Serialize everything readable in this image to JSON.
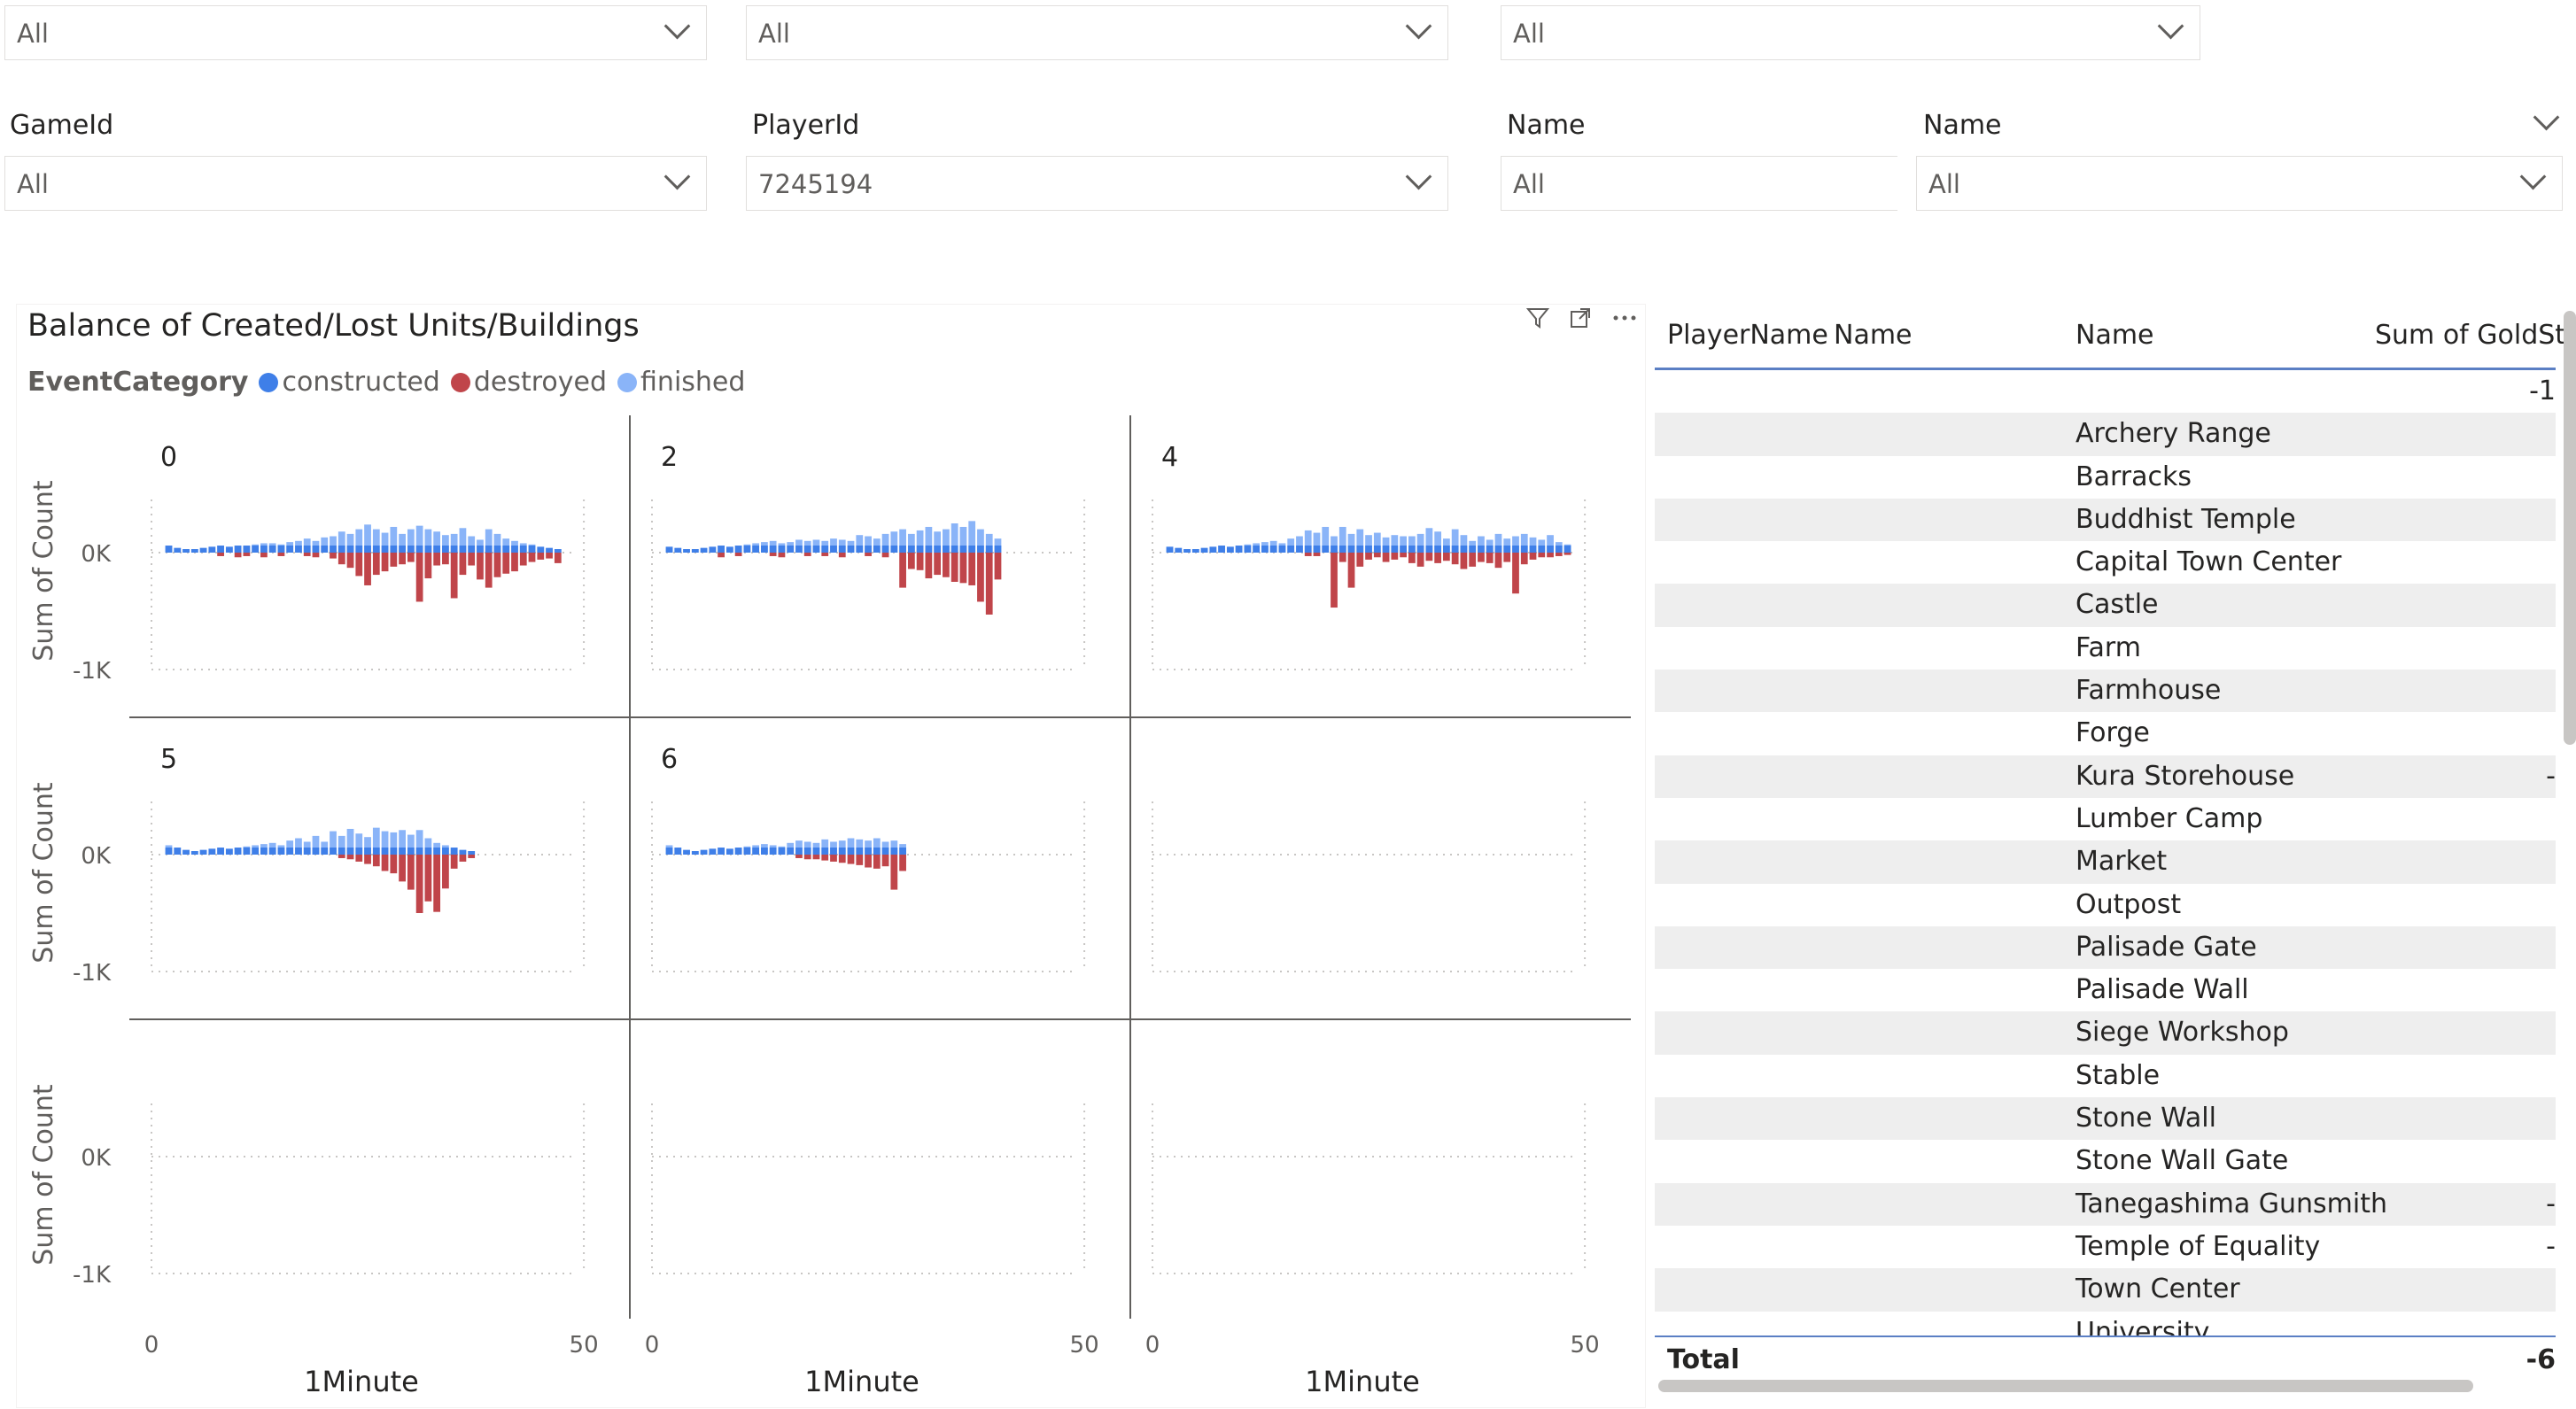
{
  "slicers_top": [
    {
      "value": "All"
    },
    {
      "value": "All"
    },
    {
      "value": "All"
    }
  ],
  "slicers": [
    {
      "title": "GameId",
      "value": "All"
    },
    {
      "title": "PlayerId",
      "value": "7245194"
    },
    {
      "title": "Name",
      "value": "All"
    },
    {
      "title": "Name",
      "value": "All"
    }
  ],
  "chart": {
    "title": "Balance of Created/Lost Units/Buildings",
    "legend_title": "EventCategory",
    "legend": [
      {
        "label": "constructed",
        "color": "#3f7fe8"
      },
      {
        "label": "destroyed",
        "color": "#c0454a"
      },
      {
        "label": "finished",
        "color": "#8ab4f8"
      }
    ],
    "icons": [
      "filter-icon",
      "focus-mode-icon",
      "more-options-icon"
    ]
  },
  "chart_data": {
    "type": "bar",
    "small_multiples": true,
    "panels": [
      {
        "label": "0",
        "x": [
          2,
          3,
          4,
          5,
          6,
          7,
          8,
          9,
          10,
          11,
          12,
          13,
          14,
          15,
          16,
          17,
          18,
          19,
          20,
          21,
          22,
          23,
          24,
          25,
          26,
          27,
          28,
          29,
          30,
          31,
          32,
          33,
          34,
          35,
          36,
          37,
          38,
          39,
          40,
          41,
          42,
          43,
          44,
          45,
          46,
          47
        ],
        "created": [
          60,
          40,
          30,
          30,
          40,
          50,
          60,
          50,
          60,
          60,
          70,
          80,
          80,
          70,
          90,
          100,
          120,
          100,
          130,
          140,
          180,
          160,
          200,
          240,
          200,
          170,
          220,
          160,
          200,
          230,
          200,
          180,
          150,
          160,
          210,
          140,
          110,
          200,
          160,
          120,
          100,
          80,
          70,
          50,
          40,
          30
        ],
        "destroyed": [
          0,
          0,
          0,
          0,
          0,
          0,
          -30,
          0,
          -40,
          -30,
          0,
          -40,
          0,
          -30,
          0,
          0,
          -30,
          -40,
          0,
          -50,
          -100,
          -130,
          -200,
          -280,
          -190,
          -160,
          -120,
          -100,
          -80,
          -420,
          -220,
          -110,
          -100,
          -390,
          -190,
          -110,
          -230,
          -300,
          -210,
          -180,
          -160,
          -110,
          -80,
          -60,
          -50,
          -90
        ]
      },
      {
        "label": "2",
        "x": [
          2,
          3,
          4,
          5,
          6,
          7,
          8,
          9,
          10,
          11,
          12,
          13,
          14,
          15,
          16,
          17,
          18,
          19,
          20,
          21,
          22,
          23,
          24,
          25,
          26,
          27,
          28,
          29,
          30,
          31,
          32,
          33,
          34,
          35,
          36,
          37,
          38,
          39,
          40
        ],
        "created": [
          50,
          40,
          30,
          30,
          40,
          50,
          60,
          50,
          60,
          70,
          80,
          90,
          100,
          80,
          90,
          110,
          100,
          110,
          100,
          120,
          110,
          100,
          150,
          140,
          120,
          160,
          180,
          200,
          160,
          190,
          220,
          180,
          200,
          250,
          220,
          270,
          200,
          160,
          120
        ],
        "destroyed": [
          0,
          0,
          0,
          0,
          0,
          0,
          -40,
          0,
          -30,
          0,
          0,
          0,
          -30,
          -40,
          0,
          0,
          -30,
          0,
          -30,
          0,
          -40,
          0,
          0,
          -30,
          0,
          -40,
          0,
          -300,
          -140,
          -150,
          -220,
          -190,
          -210,
          -250,
          -260,
          -280,
          -420,
          -530,
          -230
        ]
      },
      {
        "label": "4",
        "x": [
          2,
          3,
          4,
          5,
          6,
          7,
          8,
          9,
          10,
          11,
          12,
          13,
          14,
          15,
          16,
          17,
          18,
          19,
          20,
          21,
          22,
          23,
          24,
          25,
          26,
          27,
          28,
          29,
          30,
          31,
          32,
          33,
          34,
          35,
          36,
          37,
          38,
          39,
          40,
          41,
          42,
          43,
          44,
          45,
          46,
          47,
          48
        ],
        "created": [
          50,
          40,
          30,
          30,
          40,
          50,
          60,
          50,
          60,
          70,
          80,
          90,
          100,
          80,
          120,
          140,
          190,
          170,
          220,
          140,
          220,
          160,
          200,
          150,
          170,
          130,
          150,
          140,
          140,
          160,
          210,
          180,
          120,
          200,
          150,
          100,
          140,
          110,
          160,
          120,
          140,
          160,
          130,
          110,
          150,
          90,
          70
        ],
        "destroyed": [
          0,
          0,
          0,
          0,
          0,
          0,
          0,
          0,
          0,
          0,
          0,
          0,
          0,
          0,
          0,
          0,
          -30,
          -30,
          0,
          -470,
          -80,
          -300,
          -120,
          -60,
          -40,
          -80,
          -60,
          -40,
          -90,
          -120,
          -70,
          -90,
          -70,
          -100,
          -140,
          -120,
          -80,
          -90,
          -130,
          -80,
          -350,
          -100,
          -60,
          -40,
          -40,
          -30,
          -20
        ]
      },
      {
        "label": "5",
        "x": [
          2,
          3,
          4,
          5,
          6,
          7,
          8,
          9,
          10,
          11,
          12,
          13,
          14,
          15,
          16,
          17,
          18,
          19,
          20,
          21,
          22,
          23,
          24,
          25,
          26,
          27,
          28,
          29,
          30,
          31,
          32,
          33,
          34,
          35,
          36,
          37
        ],
        "created": [
          80,
          60,
          40,
          30,
          40,
          50,
          60,
          50,
          60,
          70,
          80,
          90,
          100,
          80,
          120,
          140,
          110,
          160,
          110,
          200,
          160,
          220,
          180,
          150,
          230,
          200,
          190,
          210,
          170,
          210,
          140,
          100,
          80,
          60,
          40,
          30
        ],
        "destroyed": [
          0,
          0,
          0,
          0,
          0,
          0,
          0,
          0,
          0,
          0,
          0,
          0,
          0,
          0,
          0,
          0,
          0,
          0,
          0,
          0,
          -30,
          -40,
          -60,
          -80,
          -100,
          -140,
          -160,
          -230,
          -300,
          -500,
          -400,
          -490,
          -290,
          -120,
          -60,
          -30
        ]
      },
      {
        "label": "6",
        "x": [
          2,
          3,
          4,
          5,
          6,
          7,
          8,
          9,
          10,
          11,
          12,
          13,
          14,
          15,
          16,
          17,
          18,
          19,
          20,
          21,
          22,
          23,
          24,
          25,
          26,
          27,
          28,
          29
        ],
        "created": [
          80,
          60,
          40,
          30,
          40,
          50,
          60,
          50,
          60,
          70,
          80,
          90,
          80,
          70,
          100,
          120,
          110,
          100,
          130,
          110,
          120,
          140,
          130,
          120,
          140,
          110,
          120,
          90
        ],
        "destroyed": [
          0,
          0,
          0,
          0,
          0,
          0,
          0,
          0,
          0,
          0,
          0,
          0,
          0,
          0,
          0,
          -30,
          -40,
          -40,
          -50,
          -60,
          -70,
          -80,
          -90,
          -110,
          -120,
          -100,
          -300,
          -140
        ]
      }
    ],
    "ylabel": "Sum of Count",
    "y_ticks": [
      "0K",
      "-1K"
    ],
    "xlabel": "1Minute",
    "x_ticks": [
      "0",
      "50"
    ],
    "ylim": [
      -1000,
      400
    ],
    "xlim": [
      0,
      60
    ]
  },
  "table": {
    "headers": [
      "PlayerName",
      "Name",
      "Name",
      "Sum of GoldSto"
    ],
    "rows": [
      {
        "name": "",
        "sum": "-1"
      },
      {
        "name": "Archery Range",
        "sum": ""
      },
      {
        "name": "Barracks",
        "sum": ""
      },
      {
        "name": "Buddhist Temple",
        "sum": ""
      },
      {
        "name": "Capital Town Center",
        "sum": ""
      },
      {
        "name": "Castle",
        "sum": ""
      },
      {
        "name": "Farm",
        "sum": ""
      },
      {
        "name": "Farmhouse",
        "sum": ""
      },
      {
        "name": "Forge",
        "sum": ""
      },
      {
        "name": "Kura Storehouse",
        "sum": "-"
      },
      {
        "name": "Lumber Camp",
        "sum": ""
      },
      {
        "name": "Market",
        "sum": ""
      },
      {
        "name": "Outpost",
        "sum": ""
      },
      {
        "name": "Palisade Gate",
        "sum": ""
      },
      {
        "name": "Palisade Wall",
        "sum": ""
      },
      {
        "name": "Siege Workshop",
        "sum": ""
      },
      {
        "name": "Stable",
        "sum": ""
      },
      {
        "name": "Stone Wall",
        "sum": ""
      },
      {
        "name": "Stone Wall Gate",
        "sum": ""
      },
      {
        "name": "Tanegashima Gunsmith",
        "sum": "-"
      },
      {
        "name": "Temple of Equality",
        "sum": "-"
      },
      {
        "name": "Town Center",
        "sum": ""
      },
      {
        "name": "University",
        "sum": ""
      }
    ],
    "total_label": "Total",
    "total_value": "-6"
  }
}
